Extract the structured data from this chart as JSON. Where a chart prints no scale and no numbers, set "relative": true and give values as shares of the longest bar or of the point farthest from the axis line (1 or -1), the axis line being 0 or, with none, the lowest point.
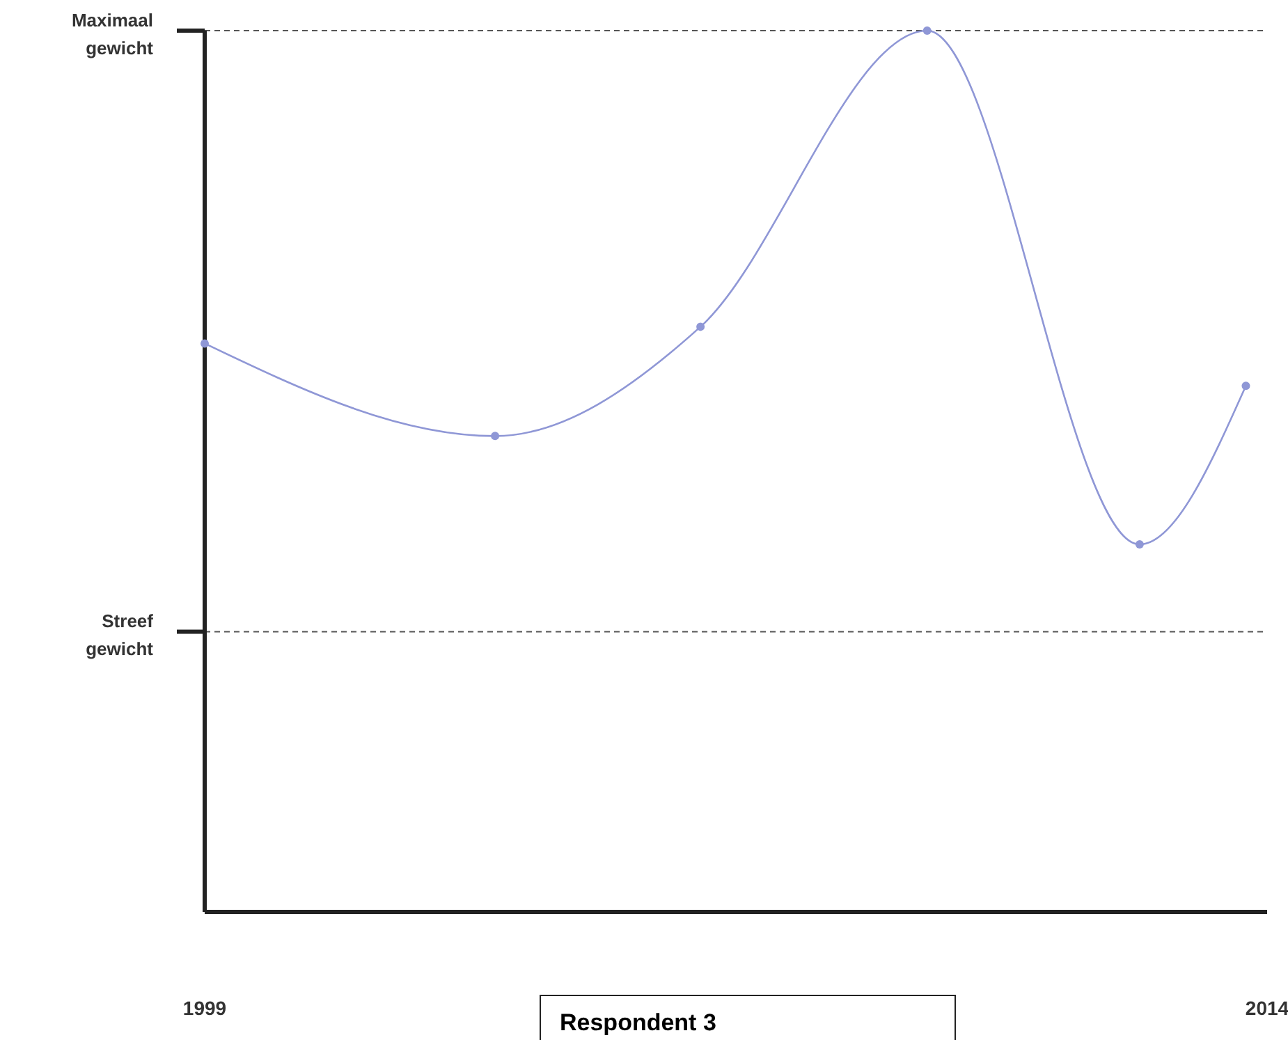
{
  "chart_data": {
    "type": "line",
    "relative": true,
    "x": [
      1999,
      2003.1,
      2006,
      2009.2,
      2012.2,
      2013.7
    ],
    "xlim": [
      1999,
      2014
    ],
    "xticks": [
      1999,
      2014
    ],
    "series": [
      {
        "color": "#8f97d6",
        "values": [
          0.645,
          0.54,
          0.664,
          1,
          0.417,
          0.597
        ]
      }
    ],
    "marker": "circle",
    "line_style": "solid",
    "ref_lines": [
      {
        "axis": "y",
        "value": 1,
        "label": "Maximaal gewicht",
        "line_style": "dashed",
        "color": "#555555"
      },
      {
        "axis": "y",
        "value": 0.318,
        "label": "Streef gewicht",
        "line_style": "dashed",
        "color": "#555555"
      }
    ],
    "annotations": [
      "Respondent 3"
    ]
  }
}
